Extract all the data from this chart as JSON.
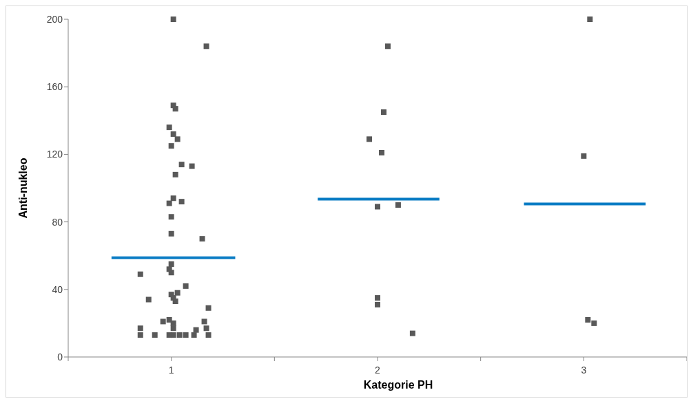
{
  "chart_data": {
    "type": "scatter",
    "xlabel": "Kategorie PH",
    "ylabel": "Anti-nukleo",
    "xlim": [
      0.5,
      3.5
    ],
    "xticks": [
      {
        "value": 0.5,
        "label": null
      },
      {
        "value": 1,
        "label": "1"
      },
      {
        "value": 1.5,
        "label": null
      },
      {
        "value": 2,
        "label": "2"
      },
      {
        "value": 2.5,
        "label": null
      },
      {
        "value": 3,
        "label": "3"
      },
      {
        "value": 3.5,
        "label": null
      }
    ],
    "ylim": [
      0,
      200
    ],
    "yticks": [
      0,
      40,
      80,
      120,
      160,
      200
    ],
    "grid": false,
    "legend": false,
    "marker": "square",
    "series": [
      {
        "type": "scatter",
        "color": "#595959",
        "x": [
          1.01,
          1.17,
          1.01,
          1.02,
          0.99,
          1.01,
          1.03,
          1.0,
          1.05,
          1.1,
          1.02,
          1.01,
          1.05,
          0.99,
          1.0,
          1.0,
          1.15,
          1.0,
          0.99,
          1.0,
          0.85,
          1.07,
          1.03,
          0.89,
          1.0,
          1.01,
          1.02,
          1.18,
          0.96,
          0.99,
          1.01,
          1.01,
          1.16,
          0.85,
          1.17,
          1.12,
          0.85,
          0.92,
          0.99,
          1.01,
          1.04,
          1.07,
          1.11,
          1.18,
          2.05,
          2.03,
          1.96,
          2.02,
          2.0,
          2.1,
          2.0,
          2.0,
          2.17,
          3.03,
          3.0,
          3.02,
          3.05
        ],
        "values": [
          200,
          184,
          149,
          147,
          136,
          132,
          129,
          125,
          114,
          113,
          108,
          94,
          92,
          91,
          83,
          73,
          70,
          55,
          52,
          50,
          49,
          42,
          38,
          34,
          37,
          35,
          33,
          29,
          21,
          22,
          20,
          17,
          21,
          17,
          17,
          16,
          13,
          13,
          13,
          13,
          13,
          13,
          13,
          13,
          184,
          145,
          129,
          121,
          89,
          90,
          35,
          31,
          14,
          200,
          119,
          22,
          20
        ]
      },
      {
        "type": "line",
        "color": "#0a7cc4",
        "marker": "none",
        "x": [
          0.71,
          1.31
        ],
        "values": [
          58.8,
          58.8
        ]
      },
      {
        "type": "line",
        "color": "#0a7cc4",
        "marker": "none",
        "x": [
          1.71,
          2.3
        ],
        "values": [
          93.5,
          93.5
        ]
      },
      {
        "type": "line",
        "color": "#0a7cc4",
        "marker": "none",
        "x": [
          2.71,
          3.3
        ],
        "values": [
          90.6,
          90.6
        ]
      }
    ]
  }
}
